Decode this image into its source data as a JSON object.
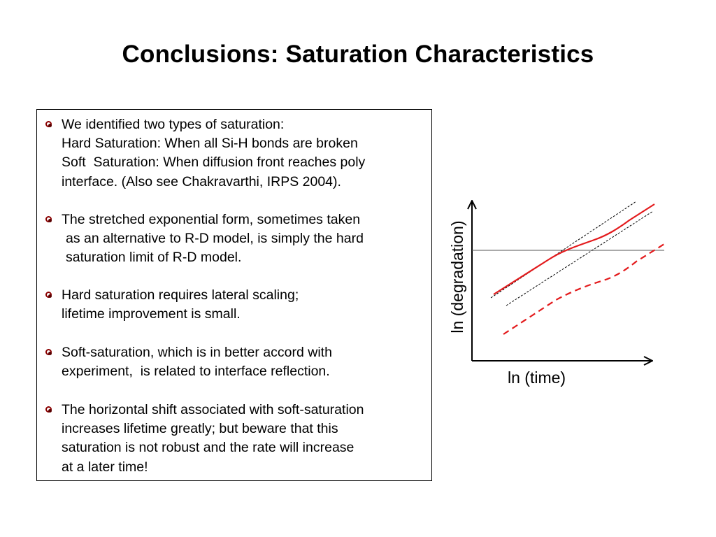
{
  "title": "Conclusions: Saturation Characteristics",
  "bullets": [
    {
      "lines": [
        "We identified two types of saturation:",
        "Hard Saturation: When all Si-H bonds are broken",
        "Soft  Saturation: When diffusion front reaches poly",
        "interface. (Also see Chakravarthi, IRPS 2004)."
      ]
    },
    {
      "lines": [
        "The stretched exponential form, sometimes taken",
        "as an alternative to R-D model, is simply the hard",
        "saturation limit of R-D model."
      ]
    },
    {
      "lines": [
        "Hard saturation requires lateral scaling;",
        "lifetime improvement is small."
      ]
    },
    {
      "lines": [
        "Soft-saturation, which is in better accord with",
        "experiment,  is related to interface reflection."
      ]
    },
    {
      "lines": [
        "The horizontal shift associated with soft-saturation",
        "increases lifetime greatly; but beware that this",
        "saturation is not robust and the rate will increase",
        "at a later time!"
      ]
    }
  ],
  "diagram": {
    "xlabel": "ln (time)",
    "ylabel": "ln (degradation)",
    "colors": {
      "curve": "#e31a1c",
      "guide": "#000000",
      "axis": "#000000"
    }
  }
}
